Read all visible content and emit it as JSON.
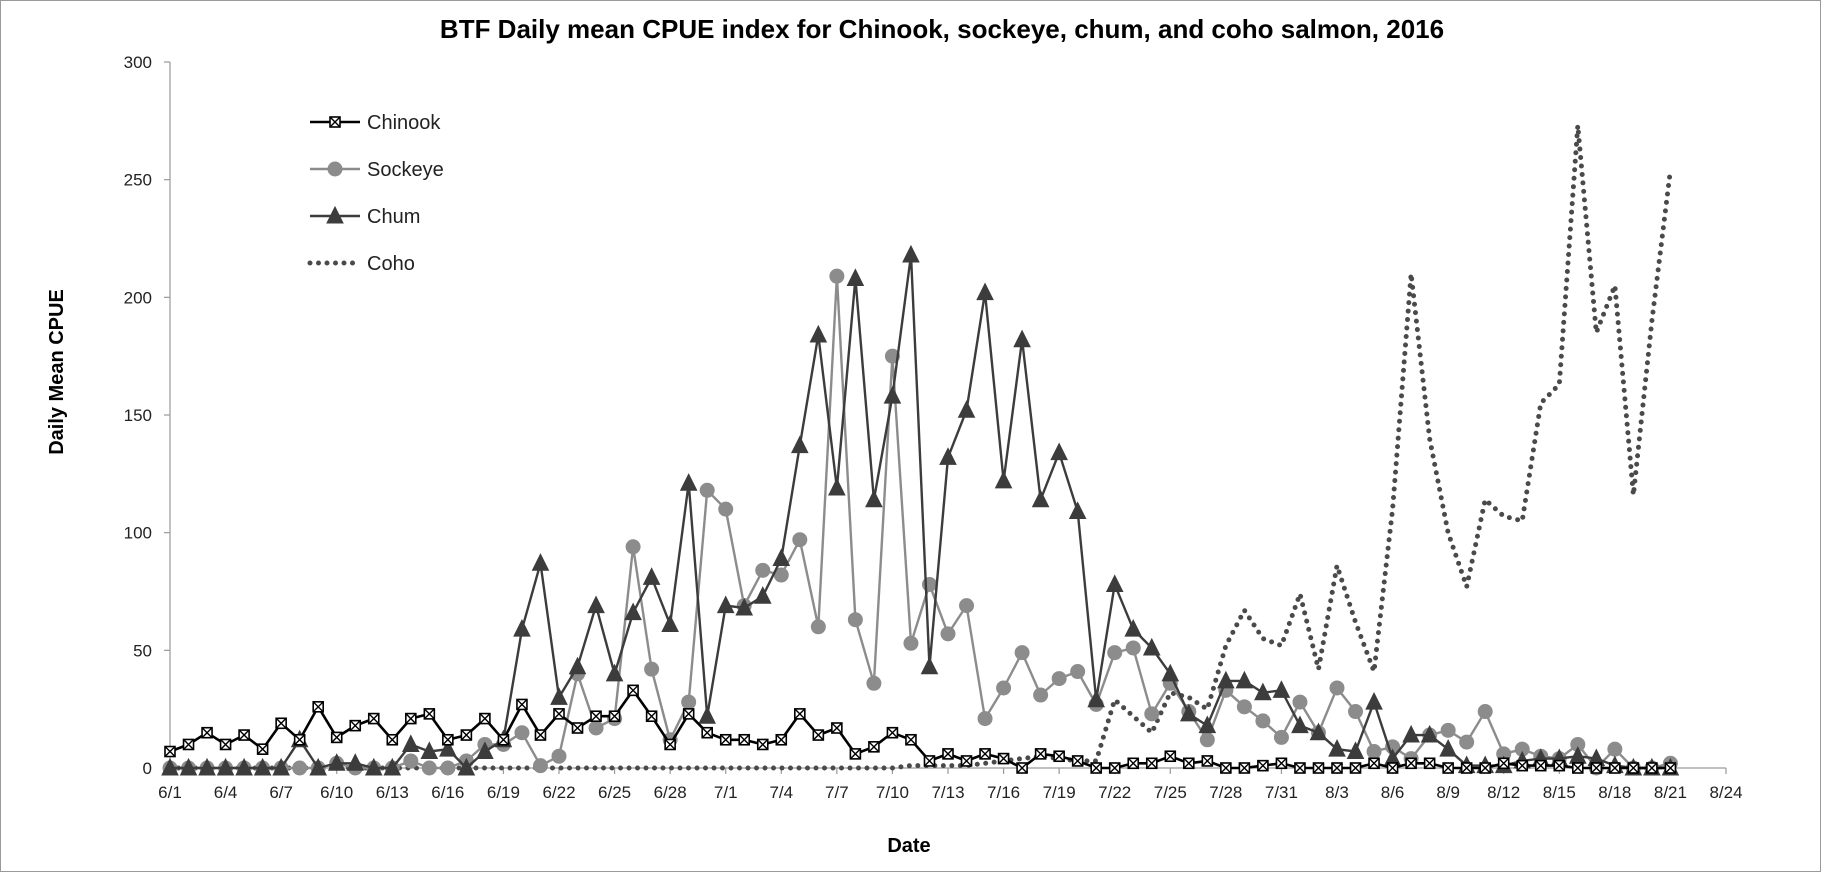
{
  "chart_data": {
    "type": "line",
    "title": "BTF Daily mean CPUE index for Chinook, sockeye, chum, and coho salmon, 2016",
    "xlabel": "Date",
    "ylabel": "Daily Mean CPUE",
    "ylim": [
      0,
      300
    ],
    "yticks": [
      0,
      50,
      100,
      150,
      200,
      250,
      300
    ],
    "x_start": "6/1",
    "x_end": "8/24",
    "xtick_labels": [
      "6/1",
      "6/4",
      "6/7",
      "6/10",
      "6/13",
      "6/16",
      "6/19",
      "6/22",
      "6/25",
      "6/28",
      "7/1",
      "7/4",
      "7/7",
      "7/10",
      "7/13",
      "7/16",
      "7/19",
      "7/22",
      "7/25",
      "7/28",
      "7/31",
      "8/3",
      "8/6",
      "8/9",
      "8/12",
      "8/15",
      "8/18",
      "8/21",
      "8/24"
    ],
    "legend_position": "top-left",
    "grid": false,
    "series": [
      {
        "name": "Chinook",
        "color": "#000000",
        "marker": "box-x",
        "line": "solid",
        "x": [
          "6/1",
          "6/2",
          "6/3",
          "6/4",
          "6/5",
          "6/6",
          "6/7",
          "6/8",
          "6/9",
          "6/10",
          "6/11",
          "6/12",
          "6/13",
          "6/14",
          "6/15",
          "6/16",
          "6/17",
          "6/18",
          "6/19",
          "6/20",
          "6/21",
          "6/22",
          "6/23",
          "6/24",
          "6/25",
          "6/26",
          "6/27",
          "6/28",
          "6/29",
          "6/30",
          "7/1",
          "7/2",
          "7/3",
          "7/4",
          "7/5",
          "7/6",
          "7/7",
          "7/8",
          "7/9",
          "7/10",
          "7/11",
          "7/12",
          "7/13",
          "7/14",
          "7/15",
          "7/16",
          "7/17",
          "7/18",
          "7/19",
          "7/20",
          "7/21",
          "7/22",
          "7/23",
          "7/24",
          "7/25",
          "7/26",
          "7/27",
          "7/28",
          "7/29",
          "7/30",
          "7/31",
          "8/1",
          "8/2",
          "8/3",
          "8/4",
          "8/5",
          "8/6",
          "8/7",
          "8/8",
          "8/9",
          "8/10",
          "8/11",
          "8/12",
          "8/13",
          "8/14",
          "8/15",
          "8/16",
          "8/17",
          "8/18",
          "8/19",
          "8/20",
          "8/21"
        ],
        "values": [
          7,
          10,
          15,
          10,
          14,
          8,
          19,
          12,
          26,
          13,
          18,
          21,
          12,
          21,
          23,
          12,
          14,
          21,
          12,
          27,
          14,
          23,
          17,
          22,
          22,
          33,
          22,
          10,
          23,
          15,
          12,
          12,
          10,
          12,
          23,
          14,
          17,
          6,
          9,
          15,
          12,
          3,
          6,
          3,
          6,
          4,
          0,
          6,
          5,
          3,
          0,
          0,
          2,
          2,
          5,
          2,
          3,
          0,
          0,
          1,
          2,
          0,
          0,
          0,
          0,
          2,
          0,
          2,
          2,
          0,
          0,
          0,
          2,
          1,
          1,
          1,
          0,
          0,
          0,
          0,
          0,
          0
        ]
      },
      {
        "name": "Sockeye",
        "color": "#8c8c8c",
        "marker": "circle",
        "line": "solid",
        "x": [
          "6/1",
          "6/2",
          "6/3",
          "6/4",
          "6/5",
          "6/6",
          "6/7",
          "6/8",
          "6/9",
          "6/10",
          "6/11",
          "6/12",
          "6/13",
          "6/14",
          "6/15",
          "6/16",
          "6/17",
          "6/18",
          "6/19",
          "6/20",
          "6/21",
          "6/22",
          "6/23",
          "6/24",
          "6/25",
          "6/26",
          "6/27",
          "6/28",
          "6/29",
          "6/30",
          "7/1",
          "7/2",
          "7/3",
          "7/4",
          "7/5",
          "7/6",
          "7/7",
          "7/8",
          "7/9",
          "7/10",
          "7/11",
          "7/12",
          "7/13",
          "7/14",
          "7/15",
          "7/16",
          "7/17",
          "7/18",
          "7/19",
          "7/20",
          "7/21",
          "7/22",
          "7/23",
          "7/24",
          "7/25",
          "7/26",
          "7/27",
          "7/28",
          "7/29",
          "7/30",
          "7/31",
          "8/1",
          "8/2",
          "8/3",
          "8/4",
          "8/5",
          "8/6",
          "8/7",
          "8/8",
          "8/9",
          "8/10",
          "8/11",
          "8/12",
          "8/13",
          "8/14",
          "8/15",
          "8/16",
          "8/17",
          "8/18",
          "8/19",
          "8/20",
          "8/21"
        ],
        "values": [
          0,
          0,
          0,
          0,
          0,
          0,
          0,
          0,
          0,
          2,
          0,
          0,
          0,
          3,
          0,
          0,
          3,
          10,
          10,
          15,
          1,
          5,
          40,
          17,
          21,
          94,
          42,
          12,
          28,
          118,
          110,
          69,
          84,
          82,
          97,
          60,
          209,
          63,
          36,
          175,
          53,
          78,
          57,
          69,
          21,
          34,
          49,
          31,
          38,
          41,
          27,
          49,
          51,
          23,
          36,
          24,
          12,
          33,
          26,
          20,
          13,
          28,
          15,
          34,
          24,
          7,
          9,
          4,
          14,
          16,
          11,
          24,
          6,
          8,
          5,
          4,
          10,
          0,
          8,
          0,
          0,
          2
        ]
      },
      {
        "name": "Chum",
        "color": "#3c3c3c",
        "marker": "triangle",
        "line": "solid",
        "x": [
          "6/1",
          "6/2",
          "6/3",
          "6/4",
          "6/5",
          "6/6",
          "6/7",
          "6/8",
          "6/9",
          "6/10",
          "6/11",
          "6/12",
          "6/13",
          "6/14",
          "6/15",
          "6/16",
          "6/17",
          "6/18",
          "6/19",
          "6/20",
          "6/21",
          "6/22",
          "6/23",
          "6/24",
          "6/25",
          "6/26",
          "6/27",
          "6/28",
          "6/29",
          "6/30",
          "7/1",
          "7/2",
          "7/3",
          "7/4",
          "7/5",
          "7/6",
          "7/7",
          "7/8",
          "7/9",
          "7/10",
          "7/11",
          "7/12",
          "7/13",
          "7/14",
          "7/15",
          "7/16",
          "7/17",
          "7/18",
          "7/19",
          "7/20",
          "7/21",
          "7/22",
          "7/23",
          "7/24",
          "7/25",
          "7/26",
          "7/27",
          "7/28",
          "7/29",
          "7/30",
          "7/31",
          "8/1",
          "8/2",
          "8/3",
          "8/4",
          "8/5",
          "8/6",
          "8/7",
          "8/8",
          "8/9",
          "8/10",
          "8/11",
          "8/12",
          "8/13",
          "8/14",
          "8/15",
          "8/16",
          "8/17",
          "8/18",
          "8/19",
          "8/20",
          "8/21"
        ],
        "values": [
          0,
          0,
          0,
          0,
          0,
          0,
          0,
          12,
          0,
          2,
          2,
          0,
          0,
          10,
          7,
          8,
          0,
          7,
          12,
          59,
          87,
          30,
          43,
          69,
          40,
          66,
          81,
          61,
          121,
          22,
          69,
          68,
          73,
          89,
          137,
          184,
          119,
          208,
          114,
          158,
          218,
          43,
          132,
          152,
          202,
          122,
          182,
          114,
          134,
          109,
          29,
          78,
          59,
          51,
          40,
          23,
          18,
          37,
          37,
          32,
          33,
          18,
          15,
          8,
          7,
          28,
          4,
          14,
          14,
          8,
          1,
          1,
          1,
          3,
          4,
          4,
          5,
          4,
          1,
          0,
          0,
          0
        ]
      },
      {
        "name": "Coho",
        "color": "#4a4a4a",
        "marker": "none",
        "line": "dotted",
        "x": [
          "6/1",
          "6/17",
          "6/18",
          "6/19",
          "6/20",
          "6/21",
          "6/22",
          "6/23",
          "6/24",
          "6/25",
          "6/26",
          "6/27",
          "6/28",
          "6/29",
          "6/30",
          "7/1",
          "7/2",
          "7/3",
          "7/4",
          "7/5",
          "7/6",
          "7/7",
          "7/8",
          "7/9",
          "7/10",
          "7/11",
          "7/12",
          "7/13",
          "7/14",
          "7/15",
          "7/16",
          "7/17",
          "7/18",
          "7/19",
          "7/20",
          "7/21",
          "7/22",
          "7/23",
          "7/24",
          "7/25",
          "7/26",
          "7/27",
          "7/28",
          "7/29",
          "7/30",
          "7/31",
          "8/1",
          "8/2",
          "8/3",
          "8/4",
          "8/5",
          "8/6",
          "8/7",
          "8/8",
          "8/9",
          "8/10",
          "8/11",
          "8/12",
          "8/13",
          "8/14",
          "8/15",
          "8/16",
          "8/17",
          "8/18",
          "8/19",
          "8/20",
          "8/21"
        ],
        "values": [
          0,
          0,
          0,
          0,
          0,
          0,
          0,
          0,
          0,
          0,
          0,
          0,
          0,
          0,
          0,
          0,
          0,
          0,
          0,
          0,
          0,
          0,
          0,
          0,
          0,
          1,
          1,
          1,
          1,
          2,
          3,
          4,
          5,
          4,
          3,
          3,
          29,
          22,
          15,
          32,
          30,
          25,
          52,
          67,
          55,
          52,
          74,
          42,
          86,
          62,
          41,
          110,
          210,
          140,
          100,
          77,
          114,
          107,
          105,
          155,
          163,
          273,
          185,
          205,
          116,
          190,
          254
        ]
      }
    ]
  }
}
